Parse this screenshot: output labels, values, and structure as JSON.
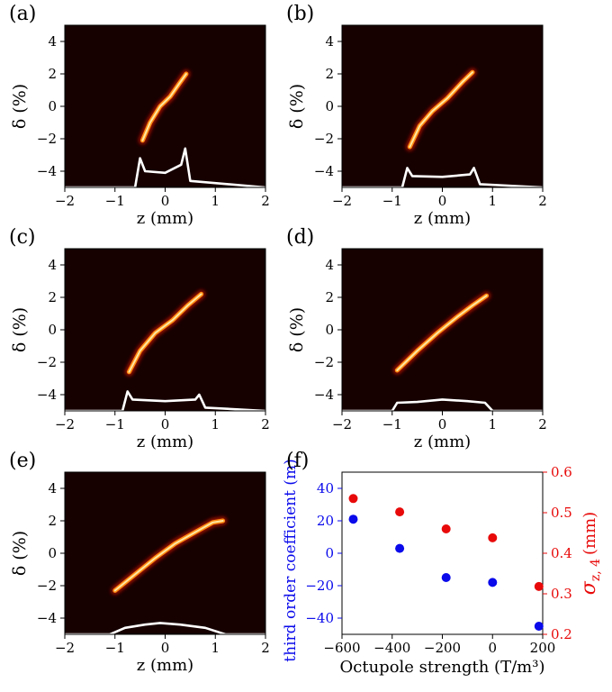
{
  "chart_data": [
    {
      "type": "heatmap",
      "panel_label": "(a)",
      "xlabel": "z (mm)",
      "ylabel": "δ (%)",
      "xlim": [
        -2,
        2
      ],
      "ylim": [
        -5,
        5
      ],
      "xticks": [
        "−2",
        "−1",
        "0",
        "1",
        "2"
      ],
      "yticks": [
        "−4",
        "−2",
        "0",
        "2",
        "4"
      ],
      "phase_space_curve": [
        [
          -0.45,
          -2.1
        ],
        [
          -0.3,
          -1.0
        ],
        [
          -0.1,
          0.0
        ],
        [
          0.1,
          0.6
        ],
        [
          0.28,
          1.4
        ],
        [
          0.42,
          2.0
        ]
      ],
      "current_profile": [
        [
          -2,
          -5
        ],
        [
          -0.6,
          -5
        ],
        [
          -0.5,
          -3.2
        ],
        [
          -0.4,
          -4.0
        ],
        [
          0.0,
          -4.1
        ],
        [
          0.32,
          -3.6
        ],
        [
          0.4,
          -2.6
        ],
        [
          0.5,
          -4.6
        ],
        [
          2,
          -5
        ]
      ]
    },
    {
      "type": "heatmap",
      "panel_label": "(b)",
      "xlabel": "z (mm)",
      "ylabel": "δ (%)",
      "xlim": [
        -2,
        2
      ],
      "ylim": [
        -5,
        5
      ],
      "xticks": [
        "−2",
        "−1",
        "0",
        "1",
        "2"
      ],
      "yticks": [
        "−4",
        "−2",
        "0",
        "2",
        "4"
      ],
      "phase_space_curve": [
        [
          -0.65,
          -2.5
        ],
        [
          -0.45,
          -1.2
        ],
        [
          -0.2,
          -0.3
        ],
        [
          0.1,
          0.5
        ],
        [
          0.4,
          1.5
        ],
        [
          0.6,
          2.1
        ]
      ],
      "current_profile": [
        [
          -2,
          -5
        ],
        [
          -0.8,
          -5
        ],
        [
          -0.7,
          -3.8
        ],
        [
          -0.6,
          -4.3
        ],
        [
          0.0,
          -4.35
        ],
        [
          0.55,
          -4.2
        ],
        [
          0.63,
          -3.8
        ],
        [
          0.75,
          -4.8
        ],
        [
          2,
          -5
        ]
      ]
    },
    {
      "type": "heatmap",
      "panel_label": "(c)",
      "xlabel": "z (mm)",
      "ylabel": "δ (%)",
      "xlim": [
        -2,
        2
      ],
      "ylim": [
        -5,
        5
      ],
      "xticks": [
        "−2",
        "−1",
        "0",
        "1",
        "2"
      ],
      "yticks": [
        "−4",
        "−2",
        "0",
        "2",
        "4"
      ],
      "phase_space_curve": [
        [
          -0.72,
          -2.6
        ],
        [
          -0.5,
          -1.3
        ],
        [
          -0.2,
          -0.2
        ],
        [
          0.15,
          0.6
        ],
        [
          0.45,
          1.5
        ],
        [
          0.72,
          2.2
        ]
      ],
      "current_profile": [
        [
          -2,
          -5
        ],
        [
          -0.85,
          -5
        ],
        [
          -0.75,
          -3.8
        ],
        [
          -0.65,
          -4.3
        ],
        [
          0.0,
          -4.4
        ],
        [
          0.6,
          -4.3
        ],
        [
          0.68,
          -4.0
        ],
        [
          0.8,
          -4.8
        ],
        [
          2,
          -5
        ]
      ]
    },
    {
      "type": "heatmap",
      "panel_label": "(d)",
      "xlabel": "z (mm)",
      "ylabel": "δ (%)",
      "xlim": [
        -2,
        2
      ],
      "ylim": [
        -5,
        5
      ],
      "xticks": [
        "−2",
        "−1",
        "0",
        "1",
        "2"
      ],
      "yticks": [
        "−4",
        "−2",
        "0",
        "2",
        "4"
      ],
      "phase_space_curve": [
        [
          -0.9,
          -2.5
        ],
        [
          -0.5,
          -1.3
        ],
        [
          -0.1,
          -0.2
        ],
        [
          0.3,
          0.8
        ],
        [
          0.6,
          1.5
        ],
        [
          0.88,
          2.1
        ]
      ],
      "current_profile": [
        [
          -2,
          -5
        ],
        [
          -1.0,
          -5
        ],
        [
          -0.9,
          -4.5
        ],
        [
          -0.5,
          -4.45
        ],
        [
          0.0,
          -4.3
        ],
        [
          0.5,
          -4.4
        ],
        [
          0.85,
          -4.5
        ],
        [
          1.0,
          -5
        ],
        [
          2,
          -5
        ]
      ]
    },
    {
      "type": "heatmap",
      "panel_label": "(e)",
      "xlabel": "z (mm)",
      "ylabel": "δ (%)",
      "xlim": [
        -2,
        2
      ],
      "ylim": [
        -5,
        5
      ],
      "xticks": [
        "−2",
        "−1",
        "0",
        "1",
        "2"
      ],
      "yticks": [
        "−4",
        "−2",
        "0",
        "2",
        "4"
      ],
      "phase_space_curve": [
        [
          -1.0,
          -2.3
        ],
        [
          -0.6,
          -1.3
        ],
        [
          -0.2,
          -0.3
        ],
        [
          0.2,
          0.6
        ],
        [
          0.6,
          1.3
        ],
        [
          0.95,
          1.9
        ],
        [
          1.15,
          2.0
        ]
      ],
      "current_profile": [
        [
          -2,
          -5
        ],
        [
          -1.1,
          -5
        ],
        [
          -0.8,
          -4.6
        ],
        [
          -0.4,
          -4.4
        ],
        [
          -0.1,
          -4.3
        ],
        [
          0.3,
          -4.4
        ],
        [
          0.8,
          -4.6
        ],
        [
          1.2,
          -5
        ],
        [
          2,
          -5
        ]
      ]
    },
    {
      "type": "scatter",
      "panel_label": "(f)",
      "xlabel": "Octupole strength (T/m³)",
      "ylabel": "third order coefficient (m)",
      "ylabel_right": "σ",
      "ylabel_right_sub": "z, 4",
      "ylabel_right_unit": "(mm)",
      "xlim": [
        -600,
        200
      ],
      "ylim": [
        -50,
        50
      ],
      "ylim_right": [
        0.2,
        0.6
      ],
      "xticks": [
        "−600",
        "−400",
        "−200",
        "0",
        "200"
      ],
      "yticks": [
        "−40",
        "−20",
        "0",
        "20",
        "40"
      ],
      "yticks_right": [
        "0.2",
        "0.3",
        "0.4",
        "0.5",
        "0.6"
      ],
      "left_color": "#0a0aeb",
      "right_color": "#e80a0a",
      "series": [
        {
          "axis": "left",
          "color": "#0a0aeb",
          "x": [
            -555,
            -370,
            -185,
            0,
            185
          ],
          "y": [
            21,
            3,
            -15,
            -18,
            -45
          ]
        },
        {
          "axis": "right",
          "color": "#e80a0a",
          "x": [
            -555,
            -370,
            -185,
            0,
            185
          ],
          "y": [
            0.535,
            0.502,
            0.46,
            0.438,
            0.318
          ]
        }
      ]
    }
  ]
}
